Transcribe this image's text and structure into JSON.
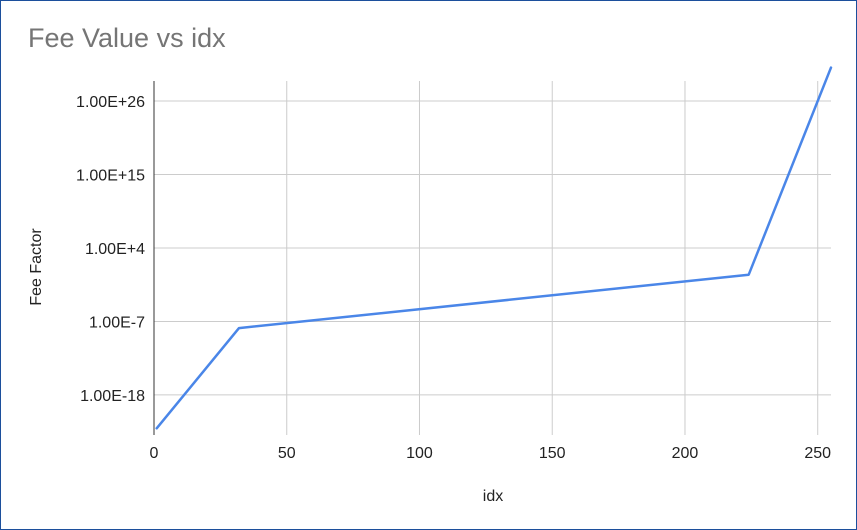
{
  "chart_data": {
    "type": "line",
    "title": "Fee Value vs idx",
    "xlabel": "idx",
    "ylabel": "Fee Factor",
    "y_scale": "log",
    "xlim": [
      0,
      255
    ],
    "ylim_log10": [
      -24,
      29
    ],
    "x_ticks": [
      0,
      50,
      100,
      150,
      200,
      250
    ],
    "x_tick_labels": [
      "0",
      "50",
      "100",
      "150",
      "200",
      "250"
    ],
    "y_ticks_log10": [
      -18,
      -7,
      4,
      15,
      26
    ],
    "y_tick_labels": [
      "1.00E-18",
      "1.00E-7",
      "1.00E+4",
      "1.00E+15",
      "1.00E+26"
    ],
    "grid": true,
    "legend": "none",
    "series_color": "#4a86e8",
    "series": [
      {
        "x": [
          1,
          32,
          224,
          255
        ],
        "y": [
          "1.00E-23",
          "1.00E-8",
          "1.00E+0",
          "1.00E+31"
        ]
      }
    ]
  }
}
